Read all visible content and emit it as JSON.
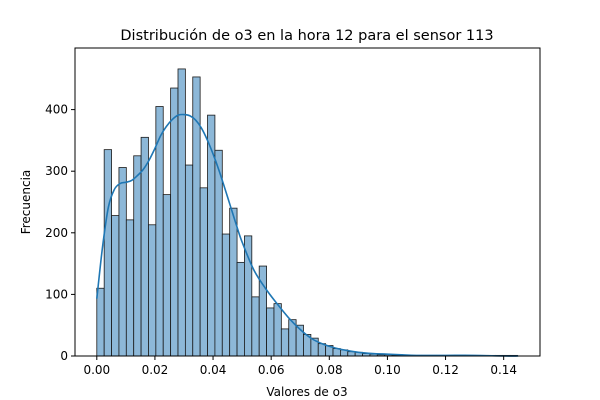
{
  "chart_data": {
    "type": "histogram",
    "title": "Distribución de o3 en la hora 12 para el sensor 113",
    "xlabel": "Valores de o3",
    "ylabel": "Frecuencia",
    "xlim": [
      -0.0075,
      0.1525
    ],
    "ylim": [
      0,
      500
    ],
    "xticks": [
      0.0,
      0.02,
      0.04,
      0.06,
      0.08,
      0.1,
      0.12,
      0.14
    ],
    "xtick_labels": [
      "0.00",
      "0.02",
      "0.04",
      "0.06",
      "0.08",
      "0.10",
      "0.12",
      "0.14"
    ],
    "yticks": [
      0,
      100,
      200,
      300,
      400
    ],
    "ytick_labels": [
      "0",
      "100",
      "200",
      "300",
      "400"
    ],
    "grid": false,
    "bin_start": 0.0,
    "bin_width": 0.00254,
    "counts": [
      110,
      335,
      228,
      306,
      221,
      325,
      355,
      213,
      405,
      262,
      435,
      466,
      310,
      453,
      273,
      391,
      334,
      198,
      240,
      152,
      195,
      96,
      146,
      78,
      85,
      44,
      59,
      50,
      35,
      29,
      20,
      17,
      12,
      10,
      7,
      6,
      4,
      3,
      2,
      2,
      1,
      1,
      1,
      1,
      1,
      1,
      1,
      1,
      1,
      1,
      1,
      1,
      1,
      1,
      1,
      1,
      1
    ],
    "kde": {
      "color": "#1f77b4",
      "x": [
        0.0,
        0.002,
        0.004,
        0.006,
        0.008,
        0.01,
        0.012,
        0.014,
        0.016,
        0.018,
        0.02,
        0.022,
        0.024,
        0.026,
        0.028,
        0.03,
        0.032,
        0.034,
        0.036,
        0.038,
        0.04,
        0.042,
        0.044,
        0.046,
        0.048,
        0.05,
        0.054,
        0.058,
        0.062,
        0.066,
        0.07,
        0.074,
        0.078,
        0.082,
        0.086,
        0.09,
        0.095,
        0.1,
        0.105,
        0.11,
        0.12,
        0.13,
        0.14,
        0.145
      ],
      "y": [
        93,
        178,
        242,
        270,
        280,
        282,
        285,
        293,
        303,
        318,
        337,
        358,
        373,
        384,
        391,
        392,
        390,
        383,
        370,
        351,
        328,
        302,
        273,
        243,
        213,
        185,
        140,
        110,
        85,
        62,
        43,
        28,
        19,
        13,
        9,
        6,
        4,
        3,
        2,
        1,
        1,
        1,
        0,
        0
      ]
    },
    "bar_color": "#8db8d8"
  }
}
